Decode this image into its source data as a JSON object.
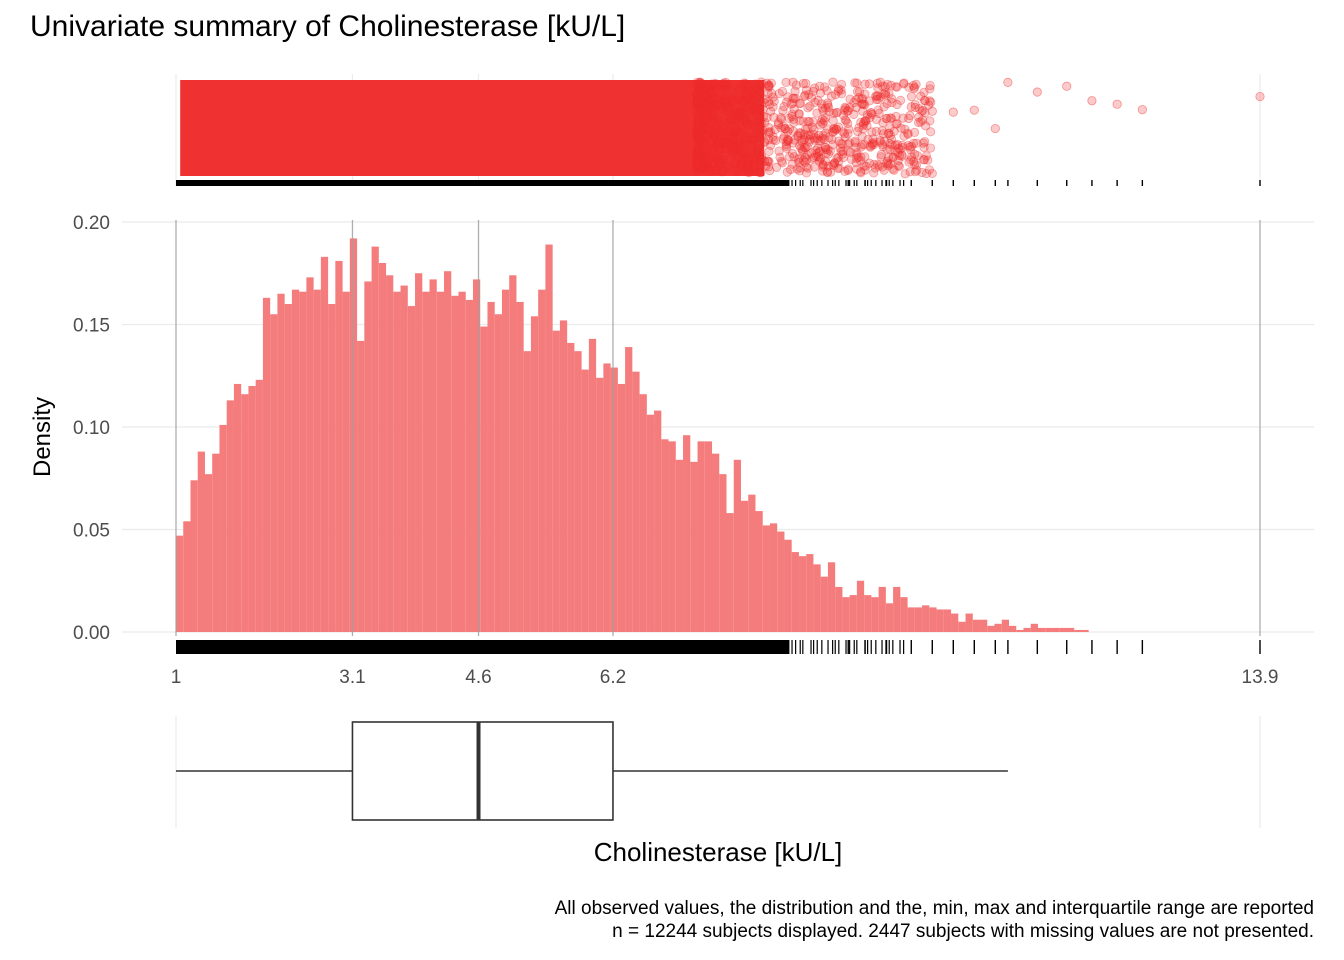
{
  "title": "Univariate summary of Cholinesterase [kU/L]",
  "caption": {
    "line1": "All observed values, the distribution and the, min, max and interquartile range are reported",
    "line2": "n = 12244 subjects displayed. 2447 subjects with missing values are not presented."
  },
  "colors": {
    "points": "#EE2A2A",
    "bars": "#F47C7C",
    "grid": "#EBEBEB",
    "reference_lines": "#A0A0A0",
    "box_stroke": "#333333"
  },
  "chart_data": [
    {
      "type": "scatter",
      "panel": "jittered observed values with rug",
      "x_range": [
        1,
        13.9
      ],
      "outlier_points_x": [
        9.0,
        9.2,
        9.45,
        9.75,
        10.0,
        10.25,
        10.5,
        10.75,
        10.9,
        11.25,
        11.6,
        11.9,
        12.2,
        12.5,
        13.9
      ],
      "grid": true
    },
    {
      "type": "bar",
      "panel": "histogram",
      "ylabel": "Density",
      "xlabel": "",
      "x_range": [
        1,
        13.9
      ],
      "ylim": [
        0,
        0.2
      ],
      "yticks": [
        "0.00",
        "0.05",
        "0.10",
        "0.15",
        "0.20"
      ],
      "xticks": [
        "1",
        "3.1",
        "4.6",
        "6.2",
        "13.9"
      ],
      "xtick_values": [
        1,
        3.1,
        4.6,
        6.2,
        13.9
      ],
      "bin_start": 1.0,
      "bin_width": 0.0862,
      "values": [
        0.047,
        0.054,
        0.074,
        0.088,
        0.077,
        0.087,
        0.101,
        0.113,
        0.121,
        0.116,
        0.12,
        0.123,
        0.163,
        0.155,
        0.165,
        0.16,
        0.167,
        0.166,
        0.173,
        0.167,
        0.183,
        0.16,
        0.181,
        0.166,
        0.192,
        0.142,
        0.171,
        0.188,
        0.18,
        0.174,
        0.166,
        0.169,
        0.159,
        0.175,
        0.166,
        0.172,
        0.166,
        0.176,
        0.164,
        0.166,
        0.162,
        0.172,
        0.149,
        0.161,
        0.155,
        0.167,
        0.174,
        0.161,
        0.137,
        0.154,
        0.167,
        0.189,
        0.147,
        0.152,
        0.141,
        0.137,
        0.128,
        0.143,
        0.124,
        0.131,
        0.129,
        0.121,
        0.139,
        0.127,
        0.116,
        0.106,
        0.108,
        0.094,
        0.093,
        0.084,
        0.096,
        0.083,
        0.093,
        0.093,
        0.087,
        0.077,
        0.058,
        0.084,
        0.064,
        0.067,
        0.059,
        0.052,
        0.053,
        0.049,
        0.045,
        0.039,
        0.037,
        0.038,
        0.033,
        0.027,
        0.034,
        0.022,
        0.017,
        0.018,
        0.025,
        0.018,
        0.017,
        0.022,
        0.014,
        0.022,
        0.017,
        0.012,
        0.012,
        0.013,
        0.012,
        0.011,
        0.011,
        0.009,
        0.005,
        0.009,
        0.006,
        0.006,
        0.003,
        0.004,
        0.006,
        0.003,
        0.001,
        0.002,
        0.004,
        0.002,
        0.002,
        0.002,
        0.002,
        0.002,
        0.001,
        0.001,
        0.0,
        0.0,
        0.0,
        0.0,
        0.0,
        0.0,
        0.0,
        0.0,
        0.0,
        0.0,
        0.0,
        0.0,
        0.0,
        0.0,
        0.0,
        0.0,
        0.0,
        0.0,
        0.0,
        0.0
      ],
      "reference_lines": [
        1,
        3.1,
        4.6,
        6.2,
        13.9
      ],
      "grid": true
    },
    {
      "type": "boxplot",
      "panel": "boxplot",
      "xlabel": "Cholinesterase [kU/L]",
      "min": 1,
      "q1": 3.1,
      "median": 4.6,
      "q3": 6.2,
      "whisker_high": 10.9,
      "max": 13.9
    }
  ]
}
